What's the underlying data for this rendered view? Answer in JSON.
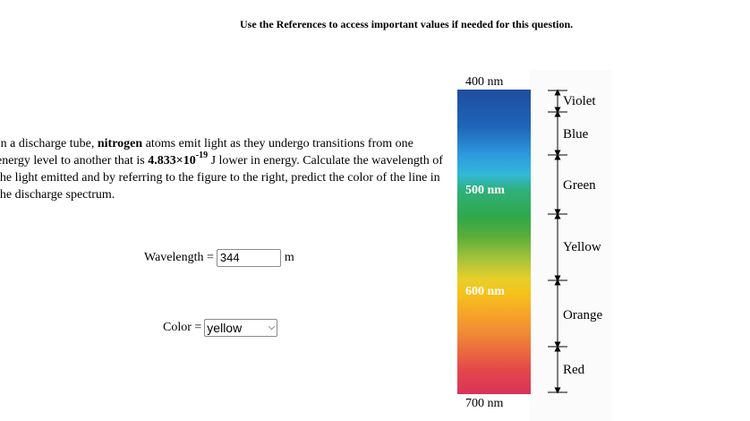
{
  "instruction": "Use the References to access important values if needed for this question.",
  "question": {
    "part1": "In a discharge tube, ",
    "element": "nitrogen",
    "part2": " atoms emit light as they undergo transitions from one energy level to another that is ",
    "energy_mantissa": "4.833×10",
    "energy_exponent": "-19",
    "part3": " J lower in energy. Calculate the wavelength of the light emitted and by referring to the figure to the right, predict the color of the line in the discharge spectrum."
  },
  "wavelength": {
    "label": "Wavelength =",
    "value": "344",
    "unit": "m"
  },
  "color": {
    "label": "Color =",
    "selected": "yellow"
  },
  "spectrum": {
    "ticks": [
      "400 nm",
      "500 nm",
      "600 nm",
      "700 nm"
    ],
    "bands": [
      "Violet",
      "Blue",
      "Green",
      "Yellow",
      "Orange",
      "Red"
    ]
  },
  "icons": {
    "dropdown": "chevron-down-icon"
  }
}
